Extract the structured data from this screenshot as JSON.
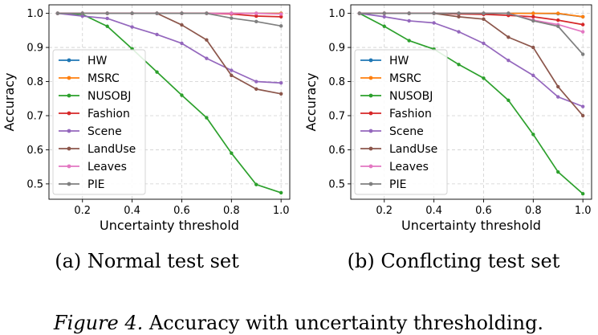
{
  "chart_data": [
    {
      "type": "line",
      "subcaption": "(a) Normal test set",
      "xlabel": "Uncertainty threshold",
      "ylabel": "Accuracy",
      "xlim": [
        0.065,
        1.035
      ],
      "ylim": [
        0.455,
        1.025
      ],
      "grid": true,
      "legend": "bottom-left",
      "x": [
        0.1,
        0.2,
        0.3,
        0.4,
        0.5,
        0.6,
        0.7,
        0.8,
        0.9,
        1.0
      ],
      "xticks": [
        "0.2",
        "0.4",
        "0.6",
        "0.8",
        "1.0"
      ],
      "yticks": [
        "0.5",
        "0.6",
        "0.7",
        "0.8",
        "0.9",
        "1.0"
      ],
      "series": [
        {
          "name": "HW",
          "color": "#1f77b4",
          "values": [
            1.0,
            1.0,
            1.0,
            1.0,
            1.0,
            1.0,
            1.0,
            1.0,
            1.0,
            1.0
          ]
        },
        {
          "name": "MSRC",
          "color": "#ff7f0e",
          "values": [
            1.0,
            1.0,
            1.0,
            1.0,
            1.0,
            1.0,
            1.0,
            1.0,
            1.0,
            1.0
          ]
        },
        {
          "name": "NUSOBJ",
          "color": "#2ca02c",
          "values": [
            1.0,
            0.997,
            0.962,
            0.896,
            0.828,
            0.76,
            0.694,
            0.59,
            0.498,
            0.474
          ]
        },
        {
          "name": "Fashion",
          "color": "#d62728",
          "values": [
            1.0,
            1.0,
            1.0,
            1.0,
            1.0,
            1.0,
            1.0,
            0.998,
            0.992,
            0.99
          ]
        },
        {
          "name": "Scene",
          "color": "#9467bd",
          "values": [
            1.0,
            0.992,
            0.985,
            0.96,
            0.938,
            0.912,
            0.868,
            0.833,
            0.8,
            0.796
          ]
        },
        {
          "name": "LandUse",
          "color": "#8c564b",
          "values": [
            1.0,
            1.0,
            1.0,
            1.0,
            1.0,
            0.966,
            0.922,
            0.818,
            0.778,
            0.764
          ]
        },
        {
          "name": "Leaves",
          "color": "#e377c2",
          "values": [
            1.0,
            1.0,
            1.0,
            1.0,
            1.0,
            1.0,
            1.0,
            1.0,
            1.0,
            0.998
          ]
        },
        {
          "name": "PIE",
          "color": "#7f7f7f",
          "values": [
            1.0,
            1.0,
            1.0,
            1.0,
            1.0,
            1.0,
            1.0,
            0.986,
            0.976,
            0.963
          ]
        }
      ]
    },
    {
      "type": "line",
      "subcaption": "(b) Conflcting test set",
      "xlabel": "Uncertainty threshold",
      "ylabel": "Accuracy",
      "xlim": [
        0.065,
        1.035
      ],
      "ylim": [
        0.455,
        1.025
      ],
      "grid": true,
      "legend": "bottom-left",
      "x": [
        0.1,
        0.2,
        0.3,
        0.4,
        0.5,
        0.6,
        0.7,
        0.8,
        0.9,
        1.0
      ],
      "xticks": [
        "0.2",
        "0.4",
        "0.6",
        "0.8",
        "1.0"
      ],
      "yticks": [
        "0.5",
        "0.6",
        "0.7",
        "0.8",
        "0.9",
        "1.0"
      ],
      "series": [
        {
          "name": "HW",
          "color": "#1f77b4",
          "values": [
            1.0,
            1.0,
            1.0,
            1.0,
            1.0,
            1.0,
            1.0,
            1.0,
            0.999,
            0.99
          ]
        },
        {
          "name": "MSRC",
          "color": "#ff7f0e",
          "values": [
            1.0,
            1.0,
            1.0,
            1.0,
            1.0,
            1.0,
            1.0,
            1.0,
            1.0,
            0.99
          ]
        },
        {
          "name": "NUSOBJ",
          "color": "#2ca02c",
          "values": [
            1.0,
            0.962,
            0.92,
            0.895,
            0.85,
            0.81,
            0.745,
            0.645,
            0.535,
            0.471
          ]
        },
        {
          "name": "Fashion",
          "color": "#d62728",
          "values": [
            1.0,
            1.0,
            1.0,
            1.0,
            0.998,
            0.997,
            0.994,
            0.99,
            0.98,
            0.967
          ]
        },
        {
          "name": "Scene",
          "color": "#9467bd",
          "values": [
            1.0,
            0.99,
            0.978,
            0.972,
            0.946,
            0.912,
            0.862,
            0.818,
            0.755,
            0.727
          ]
        },
        {
          "name": "LandUse",
          "color": "#8c564b",
          "values": [
            1.0,
            1.0,
            1.0,
            1.0,
            0.99,
            0.983,
            0.93,
            0.9,
            0.785,
            0.7
          ]
        },
        {
          "name": "Leaves",
          "color": "#e377c2",
          "values": [
            1.0,
            1.0,
            1.0,
            1.0,
            1.0,
            1.0,
            1.0,
            0.98,
            0.967,
            0.946
          ]
        },
        {
          "name": "PIE",
          "color": "#7f7f7f",
          "values": [
            1.0,
            1.0,
            1.0,
            1.0,
            1.0,
            1.0,
            1.0,
            0.978,
            0.962,
            0.88
          ]
        }
      ]
    }
  ],
  "caption": {
    "label": "Figure 4.",
    "text": " Accuracy with uncertainty thresholding."
  }
}
